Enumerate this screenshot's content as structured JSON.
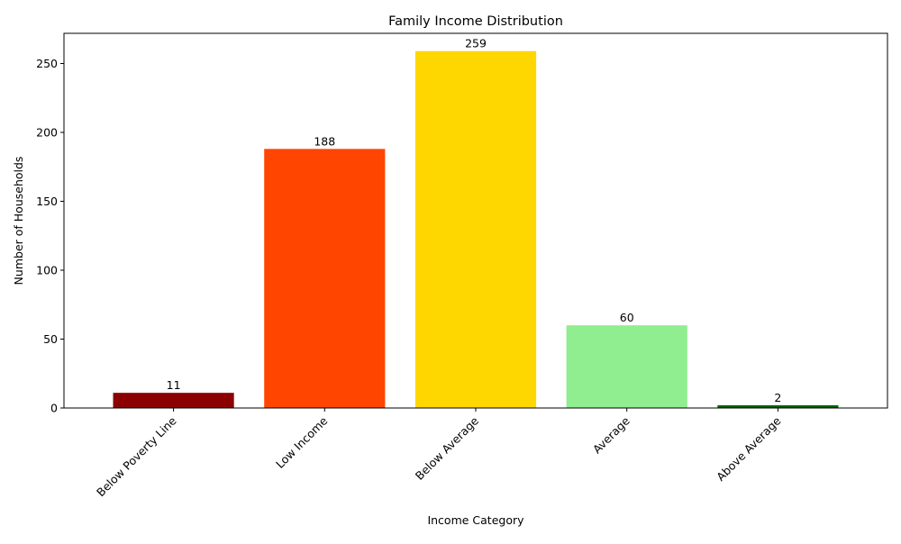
{
  "chart_data": {
    "type": "bar",
    "title": "Family Income Distribution",
    "xlabel": "Income Category",
    "ylabel": "Number of Households",
    "categories": [
      "Below Poverty Line",
      "Low Income",
      "Below Average",
      "Average",
      "Above Average"
    ],
    "values": [
      11,
      188,
      259,
      60,
      2
    ],
    "value_labels": [
      "11",
      "188",
      "259",
      "60",
      "2"
    ],
    "colors": [
      "#8b0000",
      "#ff4500",
      "#ffd700",
      "#90ee90",
      "#006400"
    ],
    "ylim": [
      0,
      271.9
    ],
    "yticks": [
      0,
      50,
      100,
      150,
      200,
      250
    ],
    "ytick_labels": [
      "0",
      "50",
      "100",
      "150",
      "200",
      "250"
    ],
    "grid": false,
    "legend": "none",
    "xtick_rotation_deg": 45
  }
}
